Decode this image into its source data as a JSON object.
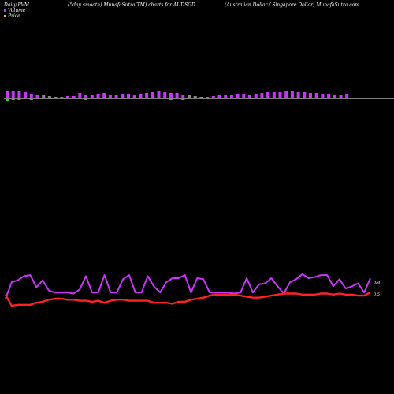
{
  "header": {
    "left": "Daily PVM",
    "middle": "(5day smooth) MunafaSutra(TM) charts for AUDSGD",
    "right": "(Australian Dollar / Singapore Dollar) MunafaSutra.com"
  },
  "colors": {
    "background": "#000000",
    "volume_up": "#cc33ff",
    "volume_down": "#33cc33",
    "volume_flat": "#888888",
    "volume_legend": "#cc33ff",
    "price_legend": "#ffaa66",
    "volume_line": "#cc33ff",
    "price_line": "#ff2222",
    "baseline": "#ffffff"
  },
  "chart_data": {
    "type": "line",
    "title": "(5day smooth) MunafaSutra(TM) charts for AUDSGD",
    "legend": [
      "Volume",
      "Price"
    ],
    "legend_placement": "top-left",
    "grid": false,
    "axis_labels": {
      "volume_axis_label": "0M",
      "price_axis_label": "0.5"
    },
    "volume_bars": [
      {
        "v": 9,
        "d": "up"
      },
      {
        "v": 8,
        "d": "up"
      },
      {
        "v": 8,
        "d": "up"
      },
      {
        "v": 7,
        "d": "up"
      },
      {
        "v": 5,
        "d": "up"
      },
      {
        "v": 4,
        "d": "up"
      },
      {
        "v": 3,
        "d": "flat"
      },
      {
        "v": 2,
        "d": "flat"
      },
      {
        "v": 1,
        "d": "flat"
      },
      {
        "v": 1,
        "d": "flat"
      },
      {
        "v": 2,
        "d": "up"
      },
      {
        "v": 2,
        "d": "up"
      },
      {
        "v": 6,
        "d": "up"
      },
      {
        "v": 4,
        "d": "up"
      },
      {
        "v": 3,
        "d": "up"
      },
      {
        "v": 5,
        "d": "up"
      },
      {
        "v": 6,
        "d": "up"
      },
      {
        "v": 4,
        "d": "up"
      },
      {
        "v": 3,
        "d": "up"
      },
      {
        "v": 5,
        "d": "up"
      },
      {
        "v": 5,
        "d": "up"
      },
      {
        "v": 4,
        "d": "up"
      },
      {
        "v": 5,
        "d": "up"
      },
      {
        "v": 6,
        "d": "up"
      },
      {
        "v": 7,
        "d": "up"
      },
      {
        "v": 8,
        "d": "up"
      },
      {
        "v": 7,
        "d": "up"
      },
      {
        "v": 6,
        "d": "up"
      },
      {
        "v": 6,
        "d": "up"
      },
      {
        "v": 4,
        "d": "up"
      },
      {
        "v": 3,
        "d": "flat"
      },
      {
        "v": 2,
        "d": "flat"
      },
      {
        "v": 1,
        "d": "flat"
      },
      {
        "v": 1,
        "d": "flat"
      },
      {
        "v": 2,
        "d": "up"
      },
      {
        "v": 3,
        "d": "up"
      },
      {
        "v": 4,
        "d": "up"
      },
      {
        "v": 4,
        "d": "up"
      },
      {
        "v": 5,
        "d": "up"
      },
      {
        "v": 5,
        "d": "up"
      },
      {
        "v": 4,
        "d": "up"
      },
      {
        "v": 5,
        "d": "up"
      },
      {
        "v": 6,
        "d": "up"
      },
      {
        "v": 7,
        "d": "up"
      },
      {
        "v": 7,
        "d": "up"
      },
      {
        "v": 7,
        "d": "up"
      },
      {
        "v": 8,
        "d": "up"
      },
      {
        "v": 8,
        "d": "up"
      },
      {
        "v": 7,
        "d": "up"
      },
      {
        "v": 7,
        "d": "up"
      },
      {
        "v": 6,
        "d": "up"
      },
      {
        "v": 6,
        "d": "up"
      },
      {
        "v": 5,
        "d": "up"
      },
      {
        "v": 5,
        "d": "up"
      },
      {
        "v": 4,
        "d": "up"
      },
      {
        "v": 3,
        "d": "up"
      },
      {
        "v": 5,
        "d": "up"
      }
    ],
    "volume_bars_below": [
      {
        "i": 0,
        "v": 3
      },
      {
        "i": 1,
        "v": 2
      },
      {
        "i": 2,
        "v": 2
      },
      {
        "i": 4,
        "v": 2
      },
      {
        "i": 13,
        "v": 2
      },
      {
        "i": 27,
        "v": 2
      },
      {
        "i": 29,
        "v": 2
      },
      {
        "i": 36,
        "v": 1
      },
      {
        "i": 41,
        "v": 1
      },
      {
        "i": 55,
        "v": 1
      }
    ],
    "volume_series": [
      7.0,
      8.6,
      8.8,
      9.2,
      9.3,
      8.1,
      8.8,
      7.8,
      7.6,
      7.6,
      7.6,
      7.5,
      7.9,
      9.2,
      7.6,
      7.6,
      9.3,
      7.6,
      7.6,
      8.9,
      9.3,
      7.6,
      7.6,
      9.2,
      8.2,
      7.6,
      8.6,
      9.0,
      9.0,
      9.3,
      7.6,
      9.0,
      8.9,
      7.6,
      7.6,
      7.6,
      7.6,
      7.5,
      7.6,
      9.0,
      7.6,
      8.4,
      8.5,
      9.0,
      8.2,
      7.5,
      8.6,
      8.9,
      9.4,
      9.0,
      9.1,
      9.3,
      9.3,
      8.2,
      8.9,
      8.0,
      8.2,
      8.5,
      7.6,
      9.0
    ],
    "price_series": [
      7.4,
      6.3,
      6.4,
      6.4,
      6.4,
      6.6,
      6.7,
      6.9,
      7.0,
      7.0,
      6.9,
      6.9,
      6.8,
      6.8,
      6.7,
      6.8,
      6.6,
      6.8,
      6.9,
      6.9,
      6.8,
      6.8,
      6.8,
      6.8,
      6.6,
      6.6,
      6.6,
      6.5,
      6.7,
      6.7,
      6.9,
      7.0,
      7.1,
      7.3,
      7.4,
      7.4,
      7.4,
      7.4,
      7.3,
      7.2,
      7.1,
      7.1,
      7.2,
      7.3,
      7.4,
      7.5,
      7.5,
      7.5,
      7.4,
      7.4,
      7.4,
      7.5,
      7.5,
      7.4,
      7.5,
      7.4,
      7.4,
      7.3,
      7.3,
      7.6
    ]
  }
}
